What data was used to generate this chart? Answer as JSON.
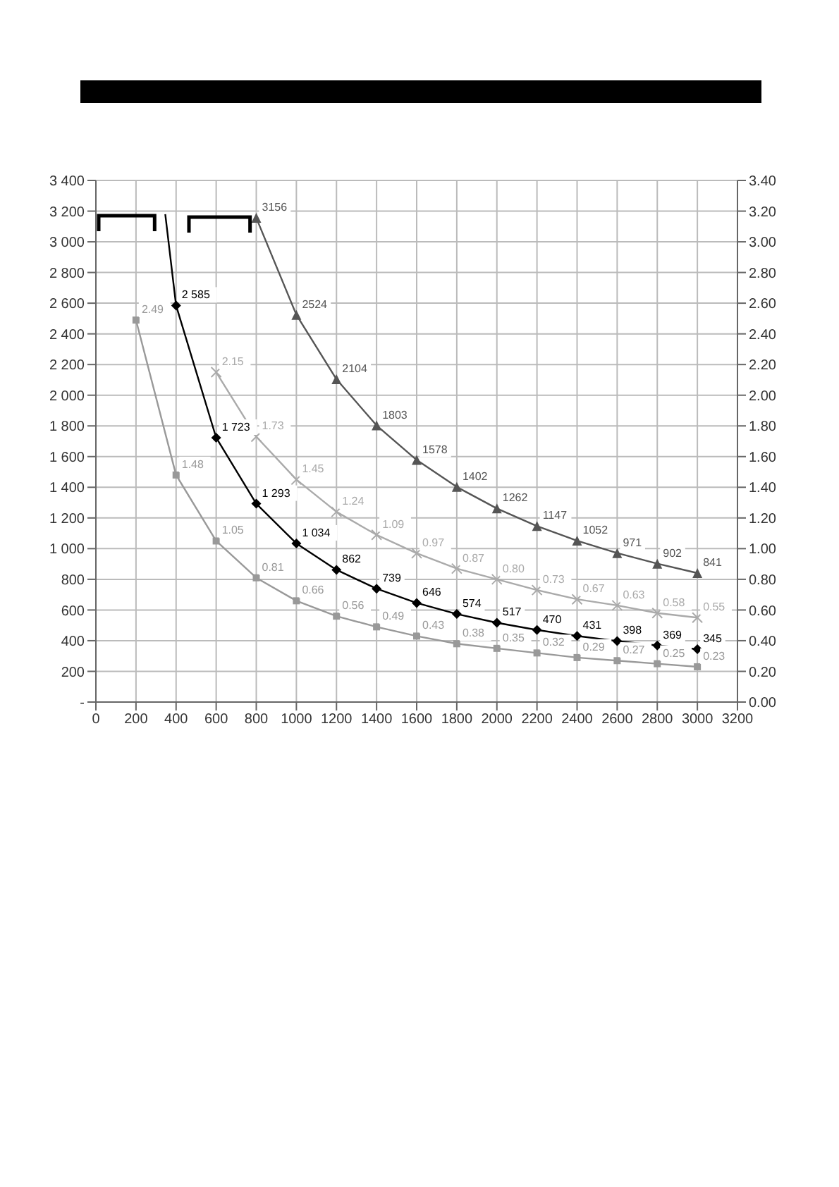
{
  "chart_data": {
    "type": "line",
    "grid": true,
    "xlim": [
      0,
      3200
    ],
    "xticks": [
      0,
      200,
      400,
      600,
      800,
      1000,
      1200,
      1400,
      1600,
      1800,
      2000,
      2200,
      2400,
      2600,
      2800,
      3000,
      3200
    ],
    "ylim": [
      0,
      3400
    ],
    "yticks": [
      {
        "value": 0,
        "label": "-"
      },
      200,
      400,
      600,
      800,
      {
        "value": 1000,
        "label": "1 000"
      },
      {
        "value": 1200,
        "label": "1 200"
      },
      {
        "value": 1400,
        "label": "1 400"
      },
      {
        "value": 1600,
        "label": "1 600"
      },
      {
        "value": 1800,
        "label": "1 800"
      },
      {
        "value": 2000,
        "label": "2 000"
      },
      {
        "value": 2200,
        "label": "2 200"
      },
      {
        "value": 2400,
        "label": "2 400"
      },
      {
        "value": 2600,
        "label": "2 600"
      },
      {
        "value": 2800,
        "label": "2 800"
      },
      {
        "value": 3000,
        "label": "3 000"
      },
      {
        "value": 3200,
        "label": "3 200"
      },
      {
        "value": 3400,
        "label": "3 400"
      }
    ],
    "y2lim": [
      0,
      3.4
    ],
    "y2ticks": [
      {
        "value": 0,
        "label": "0.00"
      },
      {
        "value": 0.2,
        "label": "0.20"
      },
      {
        "value": 0.4,
        "label": "0.40"
      },
      {
        "value": 0.6,
        "label": "0.60"
      },
      {
        "value": 0.8,
        "label": "0.80"
      },
      {
        "value": 1,
        "label": "1.00"
      },
      {
        "value": 1.2,
        "label": "1.20"
      },
      {
        "value": 1.4,
        "label": "1.40"
      },
      {
        "value": 1.6,
        "label": "1.60"
      },
      {
        "value": 1.8,
        "label": "1.80"
      },
      {
        "value": 2,
        "label": "2.00"
      },
      {
        "value": 2.2,
        "label": "2.20"
      },
      {
        "value": 2.4,
        "label": "2.40"
      },
      {
        "value": 2.6,
        "label": "2.60"
      },
      {
        "value": 2.8,
        "label": "2.80"
      },
      {
        "value": 3,
        "label": "3.00"
      },
      {
        "value": 3.2,
        "label": "3.20"
      },
      {
        "value": 3.4,
        "label": "3.40"
      }
    ],
    "series": [
      {
        "color": "#555555",
        "marker": "triangle",
        "axis": "y",
        "x": [
          800,
          1000,
          1200,
          1400,
          1600,
          1800,
          2000,
          2200,
          2400,
          2600,
          2800,
          3000
        ],
        "values": [
          3156,
          2524,
          2104,
          1803,
          1578,
          1402,
          1262,
          1147,
          1052,
          971,
          902,
          841
        ],
        "value_labels": [
          "3156",
          "2524",
          "2104",
          "1803",
          "1578",
          "1402",
          "1262",
          "1147",
          "1052",
          "971",
          "902",
          "841"
        ]
      },
      {
        "color": "#aaaaaa",
        "marker": "cross",
        "axis": "y2",
        "x": [
          600,
          800,
          1000,
          1200,
          1400,
          1600,
          1800,
          2000,
          2200,
          2400,
          2600,
          2800,
          3000
        ],
        "values": [
          2.15,
          1.73,
          1.45,
          1.24,
          1.09,
          0.97,
          0.87,
          0.8,
          0.73,
          0.67,
          0.63,
          0.58,
          0.55
        ],
        "value_labels": [
          "2.15",
          "1.73",
          "1.45",
          "1.24",
          "1.09",
          "0.97",
          "0.87",
          "0.80",
          "0.73",
          "0.67",
          "0.63",
          "0.58",
          "0.55"
        ]
      },
      {
        "color": "#000000",
        "marker": "diamond",
        "axis": "y",
        "x": [
          346,
          400,
          600,
          800,
          1000,
          1200,
          1400,
          1600,
          1800,
          2000,
          2200,
          2400,
          2600,
          2800,
          3000
        ],
        "values": [
          3180,
          2585,
          1723,
          1293,
          1034,
          862,
          739,
          646,
          574,
          517,
          470,
          431,
          398,
          369,
          345
        ],
        "value_labels": [
          null,
          "2 585",
          "1 723",
          "1 293",
          "1 034",
          "862",
          "739",
          "646",
          "574",
          "517",
          "470",
          "431",
          "398",
          "369",
          "345"
        ]
      },
      {
        "color": "#999999",
        "marker": "square",
        "axis": "y2",
        "x": [
          200,
          400,
          600,
          800,
          1000,
          1200,
          1400,
          1600,
          1800,
          2000,
          2200,
          2400,
          2600,
          2800,
          3000
        ],
        "values": [
          2.49,
          1.48,
          1.05,
          0.81,
          0.66,
          0.56,
          0.49,
          0.43,
          0.38,
          0.35,
          0.32,
          0.29,
          0.27,
          0.25,
          0.23
        ],
        "value_labels": [
          "2.49",
          "1.48",
          "1.05",
          "0.81",
          "0.66",
          "0.56",
          "0.49",
          "0.43",
          "0.38",
          "0.35",
          "0.32",
          "0.29",
          "0.27",
          "0.25",
          "0.23"
        ]
      }
    ]
  }
}
